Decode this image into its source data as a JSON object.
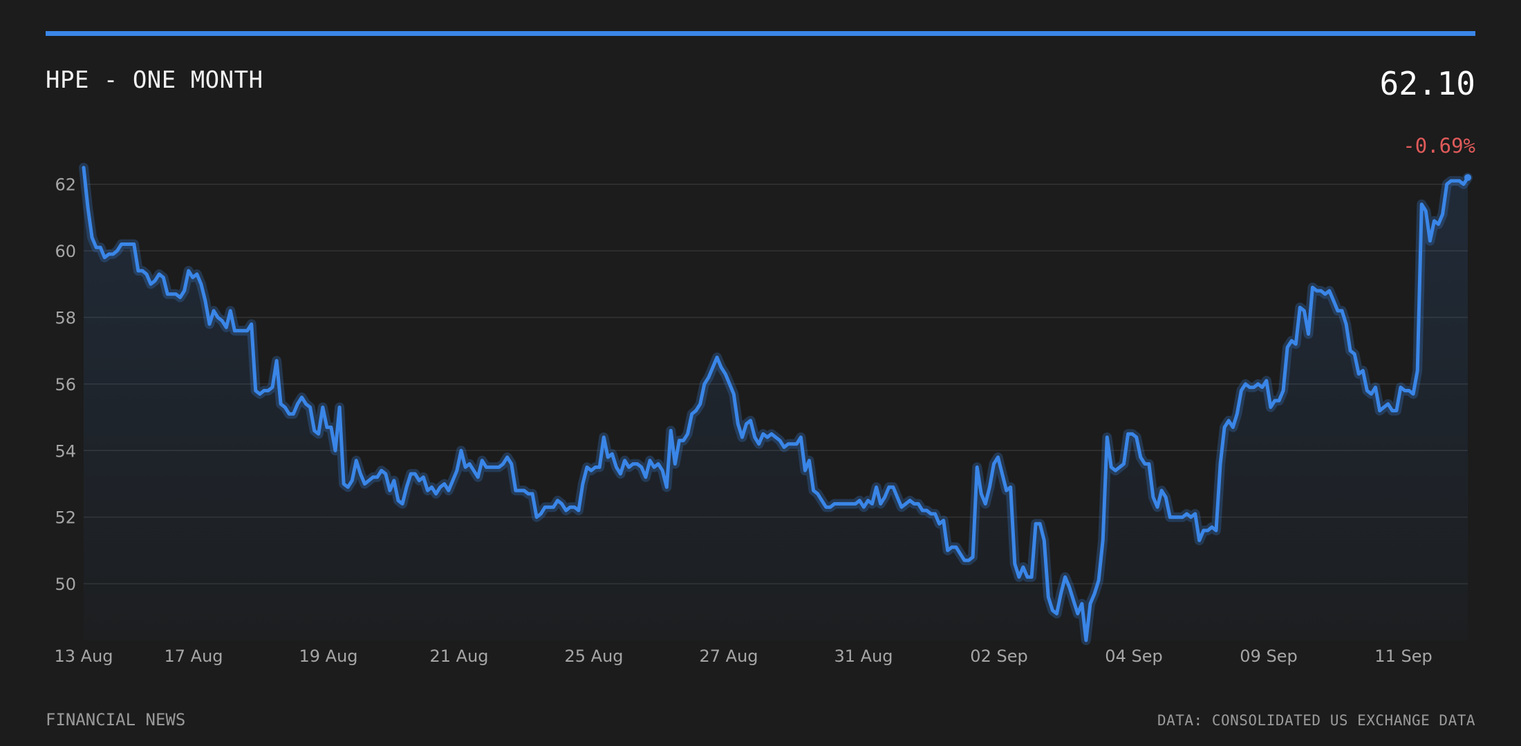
{
  "header": {
    "title": "HPE - ONE MONTH",
    "price": "62.10",
    "change": "-0.69%"
  },
  "footer": {
    "source_left": "FINANCIAL NEWS",
    "source_right": "DATA: CONSOLIDATED US EXCHANGE DATA"
  },
  "colors": {
    "accent": "#3a86e8",
    "negative": "#e05a5a",
    "background": "#1c1c1c"
  },
  "chart_data": {
    "type": "area",
    "title": "HPE - ONE MONTH",
    "xlabel": "",
    "ylabel": "",
    "ylim": [
      48.3,
      62.7
    ],
    "yticks": [
      50,
      52,
      54,
      56,
      58,
      60,
      62
    ],
    "xticks": [
      "13 Aug",
      "17 Aug",
      "19 Aug",
      "21 Aug",
      "25 Aug",
      "27 Aug",
      "31 Aug",
      "02 Sep",
      "04 Sep",
      "09 Sep",
      "11 Sep"
    ],
    "grid": true,
    "legend": "none",
    "series": [
      {
        "values": [
          62.5,
          61.3,
          60.4,
          60.1,
          60.1,
          59.8,
          59.9,
          59.9,
          60.0,
          60.2,
          60.2,
          60.2,
          60.2,
          59.4,
          59.4,
          59.3,
          59.0,
          59.1,
          59.3,
          59.2,
          58.7,
          58.7,
          58.7,
          58.6,
          58.8,
          59.4,
          59.2,
          59.3,
          59.0,
          58.5,
          57.8,
          58.2,
          58.0,
          57.9,
          57.7,
          58.2,
          57.6,
          57.6,
          57.6,
          57.6,
          57.8,
          55.8,
          55.7,
          55.8,
          55.8,
          55.9,
          56.7,
          55.4,
          55.3,
          55.1,
          55.1,
          55.4,
          55.6,
          55.4,
          55.3,
          54.6,
          54.5,
          55.3,
          54.7,
          54.7,
          54.0,
          55.3,
          53.0,
          52.9,
          53.1,
          53.7,
          53.3,
          53.0,
          53.1,
          53.2,
          53.2,
          53.4,
          53.3,
          52.8,
          53.1,
          52.5,
          52.4,
          52.9,
          53.3,
          53.3,
          53.1,
          53.2,
          52.8,
          52.9,
          52.7,
          52.9,
          53.0,
          52.8,
          53.1,
          53.4,
          54.0,
          53.5,
          53.6,
          53.4,
          53.2,
          53.7,
          53.5,
          53.5,
          53.5,
          53.5,
          53.6,
          53.8,
          53.6,
          52.8,
          52.8,
          52.8,
          52.7,
          52.7,
          52.0,
          52.1,
          52.3,
          52.3,
          52.3,
          52.5,
          52.4,
          52.2,
          52.3,
          52.3,
          52.2,
          53.0,
          53.5,
          53.4,
          53.5,
          53.5,
          54.4,
          53.8,
          53.9,
          53.5,
          53.3,
          53.7,
          53.5,
          53.6,
          53.6,
          53.5,
          53.2,
          53.7,
          53.5,
          53.6,
          53.4,
          52.9,
          54.6,
          53.6,
          54.3,
          54.3,
          54.5,
          55.1,
          55.2,
          55.4,
          56.0,
          56.2,
          56.5,
          56.8,
          56.5,
          56.3,
          56.0,
          55.7,
          54.8,
          54.4,
          54.8,
          54.9,
          54.4,
          54.2,
          54.5,
          54.4,
          54.5,
          54.4,
          54.3,
          54.1,
          54.2,
          54.2,
          54.2,
          54.4,
          53.4,
          53.7,
          52.8,
          52.7,
          52.5,
          52.3,
          52.3,
          52.4,
          52.4,
          52.4,
          52.4,
          52.4,
          52.4,
          52.5,
          52.3,
          52.5,
          52.4,
          52.9,
          52.4,
          52.6,
          52.9,
          52.9,
          52.6,
          52.3,
          52.4,
          52.5,
          52.4,
          52.4,
          52.2,
          52.2,
          52.1,
          52.1,
          51.8,
          51.9,
          51.0,
          51.1,
          51.1,
          50.9,
          50.7,
          50.7,
          50.8,
          53.5,
          52.7,
          52.4,
          52.9,
          53.6,
          53.8,
          53.3,
          52.8,
          52.9,
          50.6,
          50.2,
          50.5,
          50.2,
          50.2,
          51.8,
          51.8,
          51.3,
          49.6,
          49.2,
          49.1,
          49.7,
          50.2,
          49.9,
          49.5,
          49.1,
          49.4,
          48.3,
          49.4,
          49.7,
          50.1,
          51.3,
          54.4,
          53.5,
          53.4,
          53.5,
          53.6,
          54.5,
          54.5,
          54.4,
          53.8,
          53.6,
          53.6,
          52.6,
          52.3,
          52.8,
          52.6,
          52.0,
          52.0,
          52.0,
          52.0,
          52.1,
          52.0,
          52.1,
          51.3,
          51.6,
          51.6,
          51.7,
          51.6,
          53.6,
          54.7,
          54.9,
          54.7,
          55.1,
          55.8,
          56.0,
          55.9,
          55.9,
          56.0,
          55.9,
          56.1,
          55.3,
          55.5,
          55.5,
          55.8,
          57.1,
          57.3,
          57.2,
          58.3,
          58.2,
          57.5,
          58.9,
          58.8,
          58.8,
          58.7,
          58.8,
          58.5,
          58.2,
          58.2,
          57.8,
          57.0,
          56.9,
          56.3,
          56.4,
          55.8,
          55.7,
          55.9,
          55.2,
          55.3,
          55.4,
          55.2,
          55.2,
          55.9,
          55.8,
          55.8,
          55.7,
          56.4,
          61.4,
          61.2,
          60.3,
          60.9,
          60.8,
          61.1,
          62.0,
          62.1,
          62.1,
          62.1,
          62.0,
          62.2
        ]
      }
    ]
  }
}
